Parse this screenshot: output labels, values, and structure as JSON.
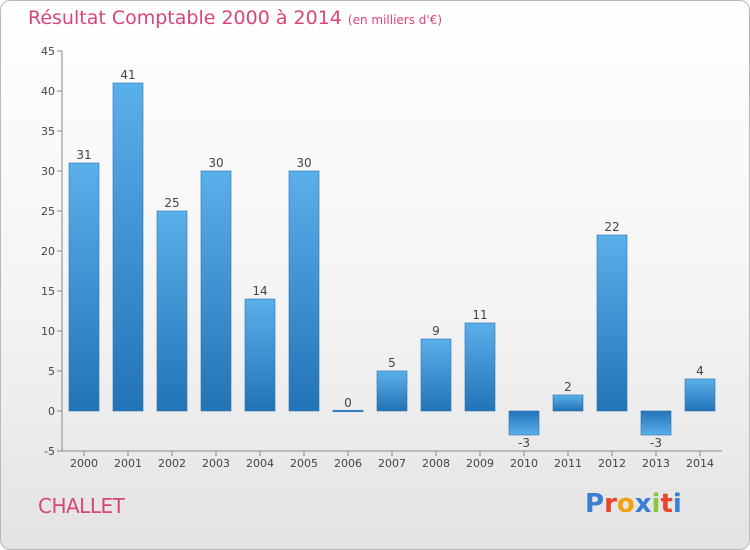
{
  "chart_data": {
    "type": "bar",
    "title": "Résultat Comptable 2000 à 2014",
    "subtitle": "(en milliers d'€)",
    "categories": [
      "2000",
      "2001",
      "2002",
      "2003",
      "2004",
      "2005",
      "2006",
      "2007",
      "2008",
      "2009",
      "2010",
      "2011",
      "2012",
      "2013",
      "2014"
    ],
    "values": [
      31,
      41,
      25,
      30,
      14,
      30,
      0,
      5,
      9,
      11,
      -3,
      2,
      22,
      -3,
      4
    ],
    "ylim": [
      -5,
      45
    ],
    "yticks": [
      -5,
      0,
      5,
      10,
      15,
      20,
      25,
      30,
      35,
      40,
      45
    ],
    "xlabel": "",
    "ylabel": "",
    "grid": false
  },
  "footer": {
    "town": "CHALLET",
    "logo": "Proxiti"
  },
  "colors": {
    "title": "#d9457a",
    "bar_light": "#5ab0ea",
    "bar_dark": "#2373b7"
  }
}
